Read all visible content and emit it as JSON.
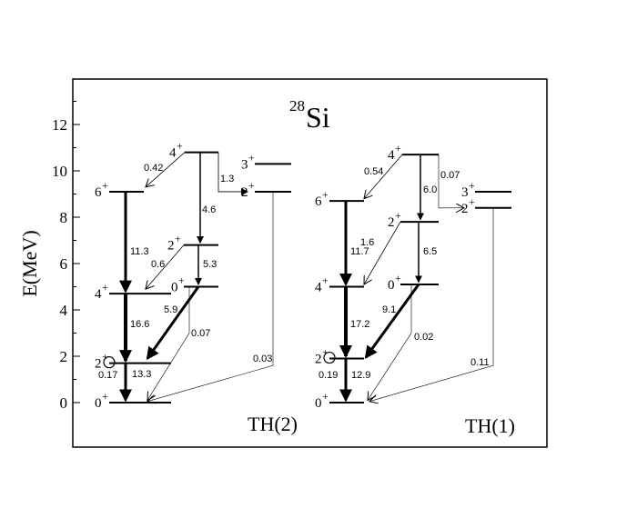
{
  "title": {
    "mass_number": "28",
    "element": "Si"
  },
  "y_axis": {
    "label": "E(MeV)",
    "ticks": [
      "0",
      "2",
      "4",
      "6",
      "8",
      "10",
      "12"
    ]
  },
  "panels": [
    {
      "id": "th2",
      "label": "TH(2)",
      "levels": [
        {
          "spin": "0",
          "parity": "+",
          "energy": 0.0
        },
        {
          "spin": "2",
          "parity": "+",
          "energy": 1.7
        },
        {
          "spin": "4",
          "parity": "+",
          "energy": 4.7
        },
        {
          "spin": "0",
          "parity": "+",
          "energy": 5.0
        },
        {
          "spin": "2",
          "parity": "+",
          "energy": 6.8
        },
        {
          "spin": "6",
          "parity": "+",
          "energy": 9.1
        },
        {
          "spin": "2",
          "parity": "+",
          "energy": 9.1
        },
        {
          "spin": "3",
          "parity": "+",
          "energy": 10.3
        },
        {
          "spin": "4",
          "parity": "+",
          "energy": 10.8
        }
      ],
      "transitions": [
        {
          "label": "0.42"
        },
        {
          "label": "4.6"
        },
        {
          "label": "1.3"
        },
        {
          "label": "11.3"
        },
        {
          "label": "0.6"
        },
        {
          "label": "5.3"
        },
        {
          "label": "16.6"
        },
        {
          "label": "5.9"
        },
        {
          "label": "0.07"
        },
        {
          "label": "0.03"
        },
        {
          "label": "13.3"
        },
        {
          "label": "0.17"
        }
      ]
    },
    {
      "id": "th1",
      "label": "TH(1)",
      "levels": [
        {
          "spin": "0",
          "parity": "+",
          "energy": 0.0
        },
        {
          "spin": "2",
          "parity": "+",
          "energy": 1.9
        },
        {
          "spin": "4",
          "parity": "+",
          "energy": 5.0
        },
        {
          "spin": "0",
          "parity": "+",
          "energy": 5.1
        },
        {
          "spin": "2",
          "parity": "+",
          "energy": 7.8
        },
        {
          "spin": "6",
          "parity": "+",
          "energy": 8.7
        },
        {
          "spin": "2",
          "parity": "+",
          "energy": 8.4
        },
        {
          "spin": "3",
          "parity": "+",
          "energy": 9.1
        },
        {
          "spin": "4",
          "parity": "+",
          "energy": 10.7
        }
      ],
      "transitions": [
        {
          "label": "0.54"
        },
        {
          "label": "6.0"
        },
        {
          "label": "0.07"
        },
        {
          "label": "11.7"
        },
        {
          "label": "1.6"
        },
        {
          "label": "6.5"
        },
        {
          "label": "17.2"
        },
        {
          "label": "9.1"
        },
        {
          "label": "0.02"
        },
        {
          "label": "0.11"
        },
        {
          "label": "12.9"
        },
        {
          "label": "0.19"
        }
      ]
    }
  ]
}
